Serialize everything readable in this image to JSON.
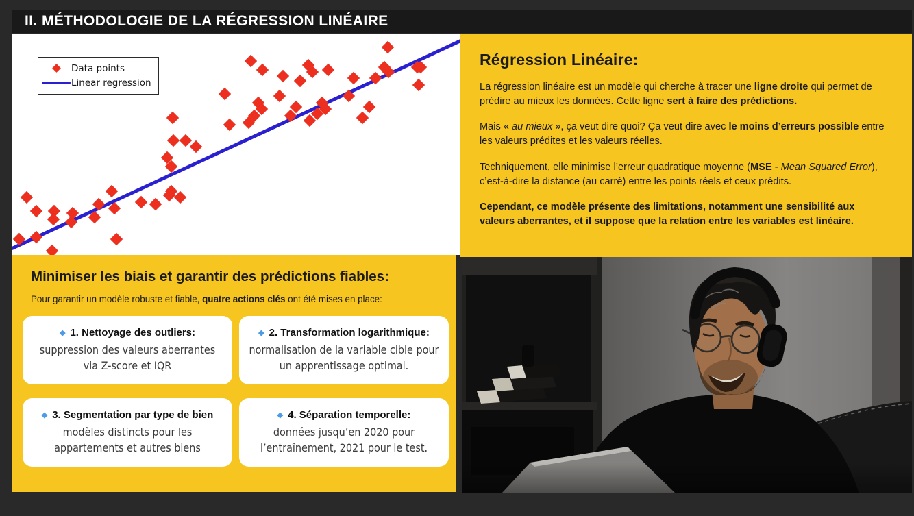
{
  "page": {
    "title": "II. MÉTHODOLOGIE DE LA RÉGRESSION LINÉAIRE"
  },
  "colors": {
    "background": "#2A2929",
    "title_bar": "#191919",
    "panel_yellow": "#F6C51F",
    "card_white": "#FFFFFF",
    "scatter_red": "#ED2F1F",
    "regression_blue": "#2B20CF",
    "bullet_blue": "#4D9BE6",
    "text_dark": "#1B1B1B"
  },
  "chart_data": {
    "type": "scatter",
    "title": "",
    "xlabel": "",
    "ylabel": "",
    "grid": false,
    "axes_visible": false,
    "xlim": [
      0,
      100
    ],
    "ylim": [
      0,
      100
    ],
    "legend_position": "upper-left",
    "legend": [
      {
        "label": "Data points",
        "marker": "red-diamond"
      },
      {
        "label": "Linear regression",
        "marker": "blue-line"
      }
    ],
    "points": [
      [
        1.5,
        7
      ],
      [
        3.2,
        26
      ],
      [
        5.3,
        20
      ],
      [
        5.3,
        8
      ],
      [
        8.9,
        2
      ],
      [
        9.2,
        16
      ],
      [
        9.4,
        20
      ],
      [
        13.1,
        15
      ],
      [
        13.5,
        19
      ],
      [
        18.3,
        17
      ],
      [
        19.2,
        23
      ],
      [
        22.1,
        29
      ],
      [
        22.8,
        21
      ],
      [
        23.2,
        7
      ],
      [
        28.7,
        24
      ],
      [
        31.9,
        23
      ],
      [
        34.5,
        44
      ],
      [
        35.0,
        27
      ],
      [
        35.5,
        29
      ],
      [
        35.8,
        62
      ],
      [
        36.0,
        52
      ],
      [
        35.5,
        40
      ],
      [
        37.4,
        26
      ],
      [
        38.7,
        52
      ],
      [
        41.0,
        49
      ],
      [
        47.4,
        73
      ],
      [
        48.4,
        59
      ],
      [
        52.8,
        60
      ],
      [
        53.2,
        88
      ],
      [
        54.0,
        63
      ],
      [
        54.9,
        69
      ],
      [
        55.7,
        66
      ],
      [
        55.8,
        84
      ],
      [
        59.6,
        72
      ],
      [
        60.4,
        81
      ],
      [
        62.1,
        63
      ],
      [
        63.3,
        67
      ],
      [
        64.2,
        79
      ],
      [
        66.0,
        86
      ],
      [
        67.0,
        83
      ],
      [
        70.5,
        84
      ],
      [
        66.3,
        61
      ],
      [
        68.0,
        64
      ],
      [
        69.1,
        69
      ],
      [
        69.9,
        66
      ],
      [
        75.1,
        72
      ],
      [
        76.1,
        80
      ],
      [
        78.2,
        62
      ],
      [
        79.7,
        67
      ],
      [
        81.0,
        80
      ],
      [
        83.0,
        85
      ],
      [
        83.8,
        94
      ],
      [
        84.0,
        83
      ],
      [
        90.4,
        85
      ],
      [
        91.1,
        85
      ],
      [
        90.7,
        77
      ]
    ],
    "regression_line": {
      "x": [
        0,
        100
      ],
      "y": [
        3,
        97
      ]
    }
  },
  "right_panel": {
    "heading": "Régression Linéaire:",
    "paragraphs": [
      [
        {
          "t": "La régression linéaire est un modèle qui cherche à tracer une "
        },
        {
          "t": "ligne droite",
          "b": true
        },
        {
          "t": " qui permet de prédire au mieux les données. Cette ligne "
        },
        {
          "t": "sert à faire des prédictions.",
          "b": true
        }
      ],
      [
        {
          "t": "Mais « "
        },
        {
          "t": "au mieux",
          "i": true
        },
        {
          "t": " », ça veut dire quoi? Ça veut dire avec "
        },
        {
          "t": "le moins d’erreurs possible",
          "b": true
        },
        {
          "t": " entre les valeurs prédites et les valeurs réelles."
        }
      ],
      [
        {
          "t": "Techniquement, elle minimise l’erreur quadratique moyenne ("
        },
        {
          "t": "MSE",
          "b": true
        },
        {
          "t": " - "
        },
        {
          "t": "Mean Squared Error",
          "i": true
        },
        {
          "t": "), c’est-à-dire la distance (au carré) entre les points réels et ceux prédits."
        }
      ],
      [
        {
          "t": "Cependant, ce modèle présente des limitations, notamment une sensibilité aux valeurs aberrantes, et il suppose que la relation entre les variables est linéaire.",
          "b": true
        }
      ]
    ]
  },
  "bottom_panel": {
    "heading": "Minimiser les biais et garantir des prédictions fiables:",
    "intro": [
      {
        "t": "Pour garantir un modèle robuste et fiable, "
      },
      {
        "t": "quatre actions clés",
        "b": true
      },
      {
        "t": " ont été mises en place:"
      }
    ],
    "bullet_char": "◆",
    "cards": [
      {
        "title": [
          {
            "t": "1. Nettoyage des outliers",
            "b": true
          },
          {
            "t": ":"
          }
        ],
        "body": "suppression des valeurs aberrantes via Z-score et IQR"
      },
      {
        "title": [
          {
            "t": "2. Transformation logarithmique:",
            "b": true
          }
        ],
        "body": "normalisation de la variable cible pour un apprentissage optimal."
      },
      {
        "title": [
          {
            "t": "3. Segmentation par type de bien",
            "b": true
          }
        ],
        "body": "modèles distincts pour les appartements et autres biens"
      },
      {
        "title": [
          {
            "t": "4. Séparation temporelle:",
            "b": true
          }
        ],
        "body": "données jusqu’en 2020 pour l’entraînement, 2021 pour le test."
      }
    ]
  },
  "photo": {
    "description": "Homme souriant portant un casque audio, assis devant un ordinateur portable"
  }
}
